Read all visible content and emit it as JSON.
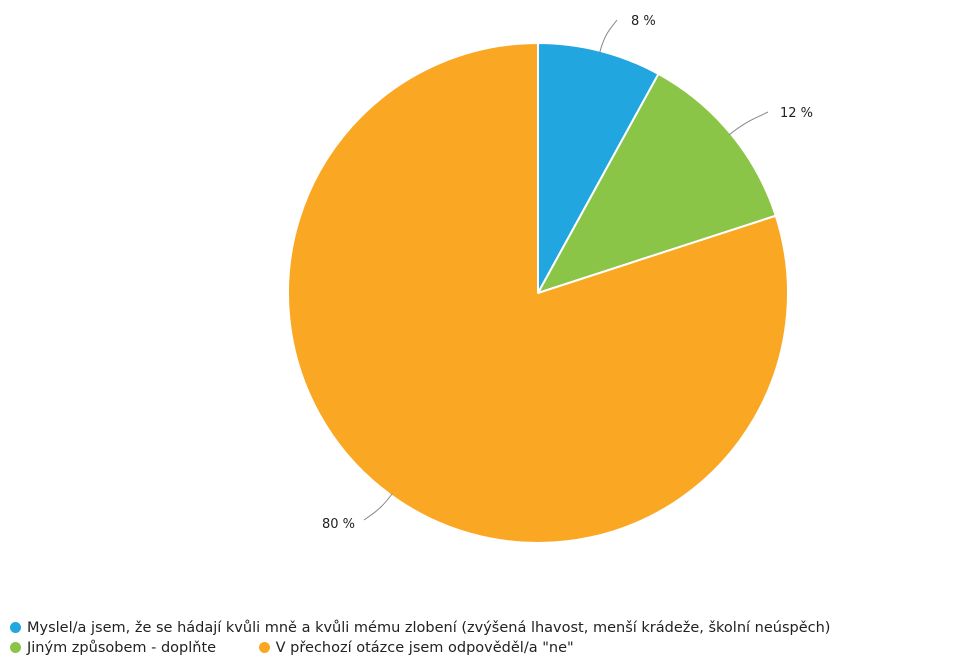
{
  "chart_data": {
    "type": "pie",
    "slices": [
      {
        "label": "Myslel/a jsem, že se hádají kvůli mně a kvůli mému zlobení (zvýšená lhavost, menší krádeže, školní neúspěch)",
        "value": 8,
        "data_label": "8 %",
        "color": "#21a6e0"
      },
      {
        "label": "Jiným způsobem - doplňte",
        "value": 12,
        "data_label": "12 %",
        "color": "#8bc548"
      },
      {
        "label": "V přechozí otázce jsem odpověděl/a \"ne\"",
        "value": 80,
        "data_label": "80 %",
        "color": "#faa723"
      }
    ],
    "legend": {
      "placement": "bottom-left",
      "items": [
        "Myslel/a jsem, že se hádají kvůli mně a kvůli mému zlobení (zvýšená lhavost, menší krádeže, školní neúspěch)",
        "Jiným způsobem - doplňte",
        "V přechozí otázce jsem odpověděl/a \"ne\""
      ]
    }
  }
}
